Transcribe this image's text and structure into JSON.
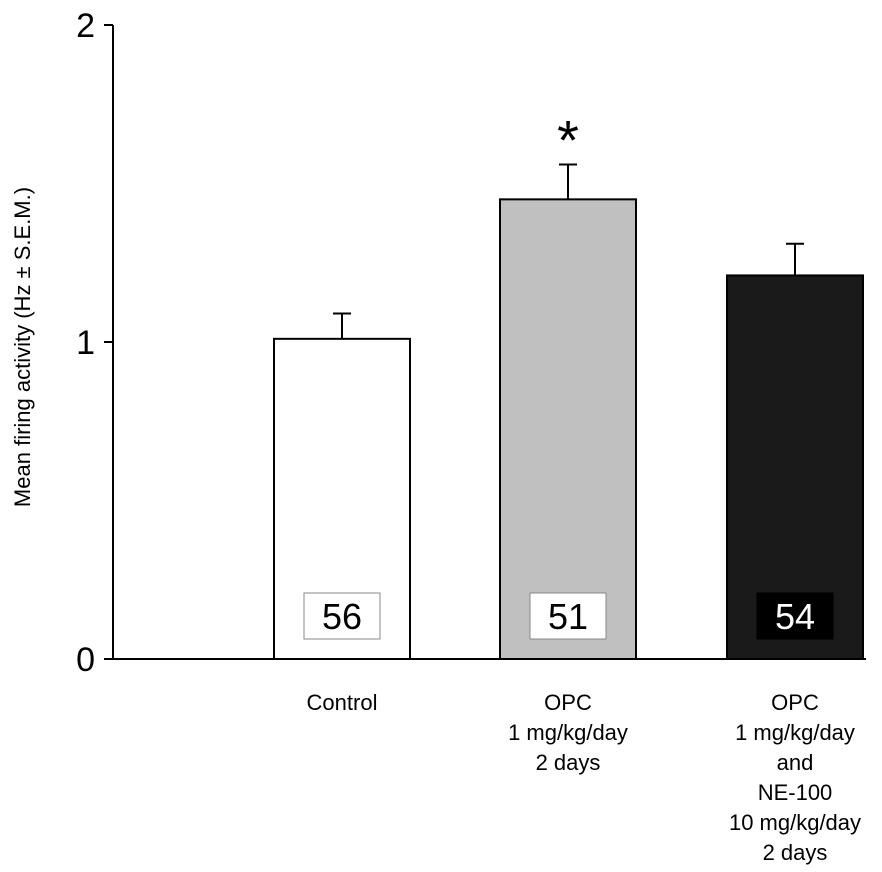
{
  "chart_data": {
    "type": "bar",
    "title": "",
    "xlabel": "",
    "ylabel": "Mean firing activity (Hz ± S.E.M.)",
    "ylim": [
      0,
      2
    ],
    "yticks": [
      0,
      1,
      2
    ],
    "yticklabels": [
      "0",
      "1",
      "2"
    ],
    "grid": false,
    "categories": [
      "Control",
      "OPC 1 mg/kg/day 2 days",
      "OPC 1 mg/kg/day and NE-100 10 mg/kg/day 2 days"
    ],
    "category_label_lines": [
      [
        "Control"
      ],
      [
        "OPC",
        "1 mg/kg/day",
        "2 days"
      ],
      [
        "OPC",
        "1 mg/kg/day",
        "and",
        "NE-100",
        "10 mg/kg/day",
        "2 days"
      ]
    ],
    "values": [
      1.01,
      1.45,
      1.21
    ],
    "errors": [
      0.08,
      0.11,
      0.1
    ],
    "n_labels": [
      "56",
      "51",
      "54"
    ],
    "significance": [
      "",
      "*",
      ""
    ],
    "colors": [
      "#ffffff",
      "#c0c0c0",
      "#1a1a1a"
    ],
    "n_box_colors": [
      "#ffffff",
      "#ffffff",
      "#000000"
    ],
    "n_text_colors": [
      "#000000",
      "#000000",
      "#ffffff"
    ]
  }
}
